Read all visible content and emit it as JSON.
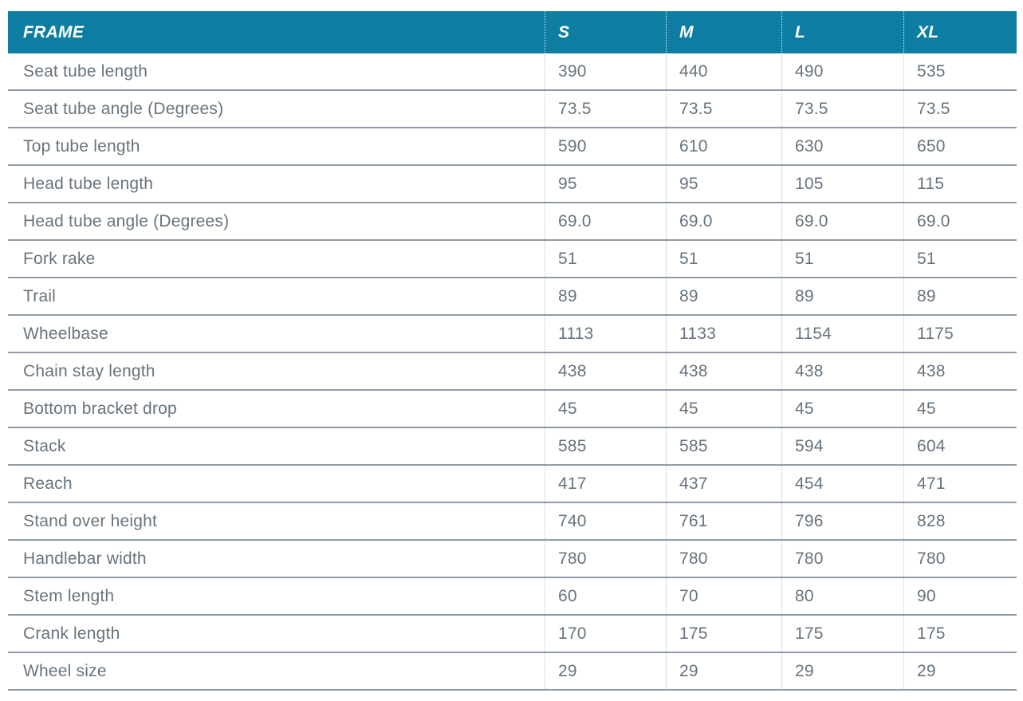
{
  "chart_data": {
    "type": "table",
    "title": "FRAME",
    "columns": [
      "S",
      "M",
      "L",
      "XL"
    ],
    "rows": [
      {
        "label": "Seat tube length",
        "values": [
          "390",
          "440",
          "490",
          "535"
        ]
      },
      {
        "label": "Seat tube angle (Degrees)",
        "values": [
          "73.5",
          "73.5",
          "73.5",
          "73.5"
        ]
      },
      {
        "label": "Top tube length",
        "values": [
          "590",
          "610",
          "630",
          "650"
        ]
      },
      {
        "label": "Head tube length",
        "values": [
          "95",
          "95",
          "105",
          "115"
        ]
      },
      {
        "label": "Head tube angle (Degrees)",
        "values": [
          "69.0",
          "69.0",
          "69.0",
          "69.0"
        ]
      },
      {
        "label": "Fork rake",
        "values": [
          "51",
          "51",
          "51",
          "51"
        ]
      },
      {
        "label": "Trail",
        "values": [
          "89",
          "89",
          "89",
          "89"
        ]
      },
      {
        "label": "Wheelbase",
        "values": [
          "1113",
          "1133",
          "1154",
          "1175"
        ]
      },
      {
        "label": "Chain stay length",
        "values": [
          "438",
          "438",
          "438",
          "438"
        ]
      },
      {
        "label": "Bottom bracket drop",
        "values": [
          "45",
          "45",
          "45",
          "45"
        ]
      },
      {
        "label": "Stack",
        "values": [
          "585",
          "585",
          "594",
          "604"
        ]
      },
      {
        "label": "Reach",
        "values": [
          "417",
          "437",
          "454",
          "471"
        ]
      },
      {
        "label": "Stand over height",
        "values": [
          "740",
          "761",
          "796",
          "828"
        ]
      },
      {
        "label": "Handlebar width",
        "values": [
          "780",
          "780",
          "780",
          "780"
        ]
      },
      {
        "label": "Stem length",
        "values": [
          "60",
          "70",
          "80",
          "90"
        ]
      },
      {
        "label": "Crank length",
        "values": [
          "170",
          "175",
          "175",
          "175"
        ]
      },
      {
        "label": "Wheel size",
        "values": [
          "29",
          "29",
          "29",
          "29"
        ]
      }
    ]
  },
  "colors": {
    "header_bg": "#0e7da2",
    "header_text": "#ffffff",
    "body_text": "#67737e",
    "row_line": "#919ba6",
    "col_line_body": "#b9c1c9"
  }
}
